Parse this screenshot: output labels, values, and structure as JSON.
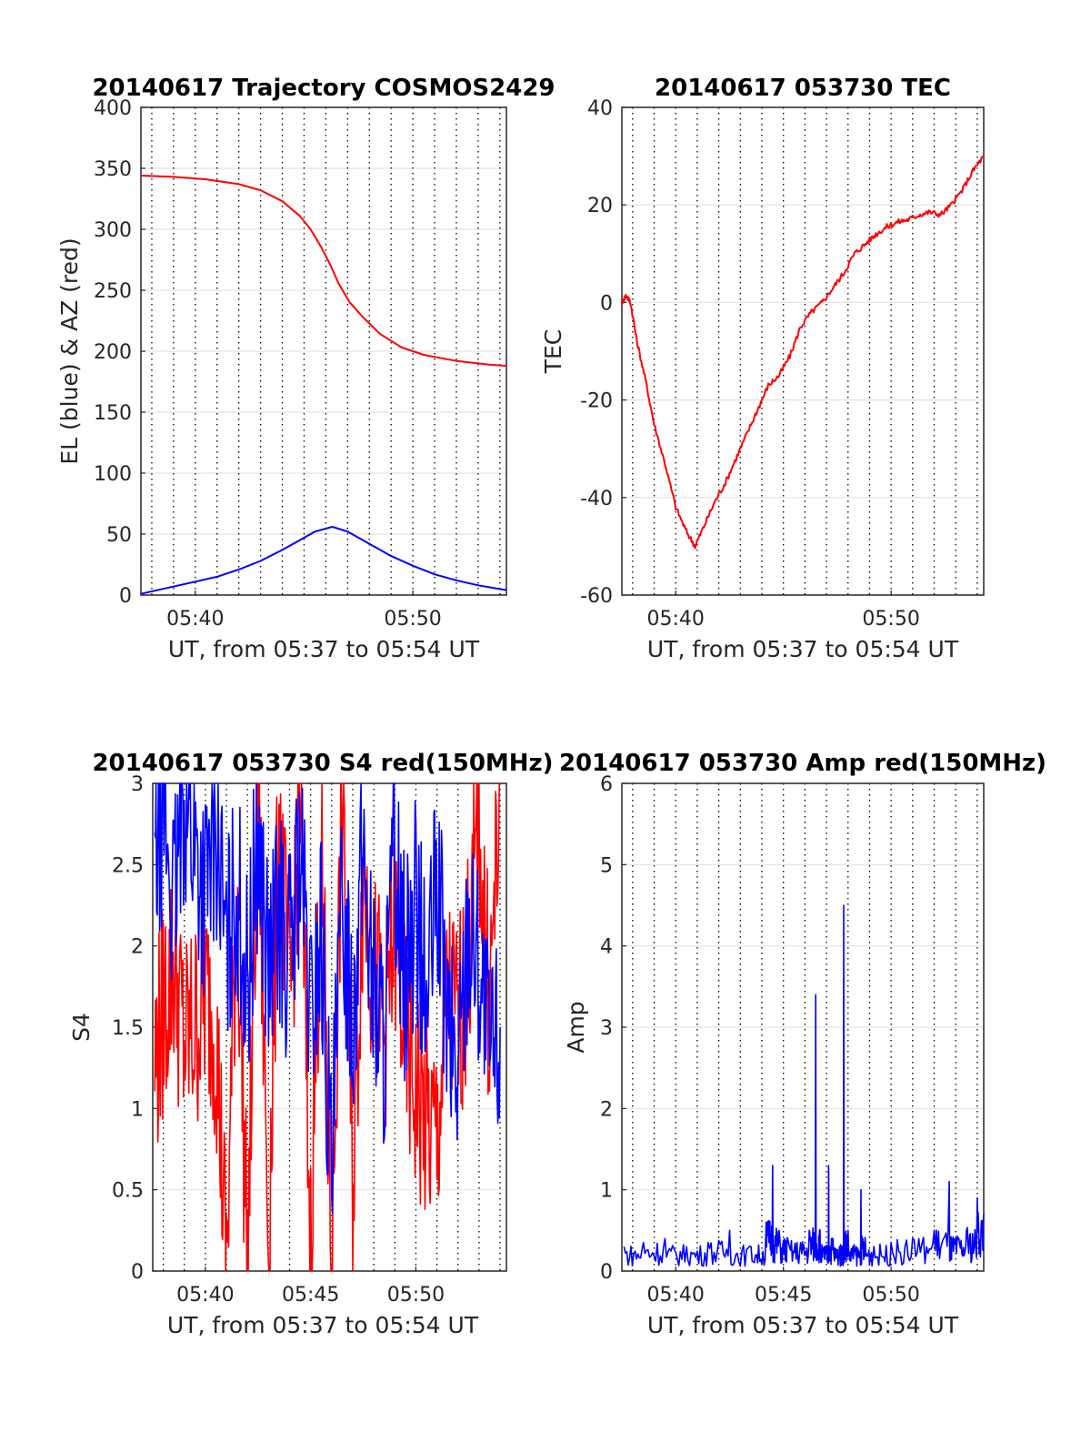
{
  "colors": {
    "az": "#ff0000",
    "el": "#0000ff",
    "tec": "#ff0000",
    "s4_red": "#ff0000",
    "s4_blue": "#0000ff",
    "amp": "#0000ff",
    "grid": "#e3e3e3",
    "axis": "#262626"
  },
  "chart_data": [
    {
      "id": "trajectory",
      "type": "line",
      "title": "20140617 Trajectory COSMOS2429",
      "xlabel": "UT, from 05:37 to 05:54 UT",
      "ylabel": "EL (blue) & AZ (red)",
      "xlim": [
        37.5,
        54.3
      ],
      "ylim": [
        0,
        400
      ],
      "xticks": [
        40,
        50
      ],
      "xticklabels": [
        "05:40",
        "05:50"
      ],
      "yticks": [
        0,
        50,
        100,
        150,
        200,
        250,
        300,
        350,
        400
      ],
      "yticklabels": [
        "0",
        "50",
        "100",
        "150",
        "200",
        "250",
        "300",
        "350",
        "400"
      ],
      "minor_x_grid": true,
      "grid": true,
      "series": [
        {
          "color": "red",
          "x": [
            37.5,
            39,
            40.5,
            42,
            43,
            44,
            44.8,
            45.3,
            45.8,
            46.2,
            46.6,
            47.1,
            47.7,
            48.5,
            49.5,
            50.5,
            52,
            53.5,
            54.3
          ],
          "values": [
            344,
            343,
            341,
            337,
            332,
            323,
            311,
            300,
            285,
            271,
            255,
            240,
            228,
            214,
            203,
            197,
            192,
            189,
            188
          ]
        },
        {
          "color": "blue",
          "x": [
            37.5,
            38.5,
            40,
            41,
            42,
            43,
            44,
            44.8,
            45.5,
            46.3,
            47,
            48,
            49,
            50,
            51,
            52,
            53,
            54.3
          ],
          "values": [
            1,
            5,
            11,
            15,
            21,
            28,
            37,
            45,
            52,
            56,
            52,
            42,
            32,
            24,
            17,
            12,
            8,
            4
          ]
        }
      ]
    },
    {
      "id": "tec",
      "type": "line",
      "title": "20140617 053730 TEC",
      "xlabel": "UT, from 05:37 to 05:54 UT",
      "ylabel": "TEC",
      "xlim": [
        37.5,
        54.3
      ],
      "ylim": [
        -60,
        40
      ],
      "xticks": [
        40,
        50
      ],
      "xticklabels": [
        "05:40",
        "05:50"
      ],
      "yticks": [
        -60,
        -40,
        -20,
        0,
        20,
        40
      ],
      "yticklabels": [
        "-60",
        "-40",
        "-20",
        "0",
        "20",
        "40"
      ],
      "minor_x_grid": true,
      "grid": true,
      "series": [
        {
          "color": "red",
          "x": [
            37.5,
            37.7,
            37.9,
            38.2,
            38.6,
            39,
            39.5,
            40,
            40.5,
            40.9,
            41.3,
            41.8,
            42.3,
            42.8,
            43.3,
            43.8,
            44.3,
            44.8,
            45.3,
            45.8,
            46.3,
            46.8,
            47.3,
            47.8,
            48.3,
            48.8,
            49.3,
            49.8,
            50.3,
            50.8,
            51.3,
            51.8,
            52.3,
            52.8,
            53.3,
            53.8,
            54.3
          ],
          "values": [
            0,
            1.5,
            0,
            -8,
            -16,
            -25,
            -33,
            -42,
            -47,
            -50,
            -46,
            -41,
            -37,
            -32,
            -27,
            -22,
            -17,
            -15,
            -11,
            -5,
            -2,
            0,
            3,
            6,
            10,
            12,
            14,
            15.5,
            16.5,
            17,
            18,
            18.5,
            18,
            20,
            23,
            27,
            30
          ]
        }
      ]
    },
    {
      "id": "s4",
      "type": "line",
      "title": "20140617 053730 S4 red(150MHz)",
      "xlabel": "UT, from 05:37 to 05:54 UT",
      "ylabel": "S4",
      "xlim": [
        37.5,
        54.3
      ],
      "ylim": [
        0,
        3
      ],
      "xticks": [
        40,
        45,
        50
      ],
      "xticklabels": [
        "05:40",
        "05:45",
        "05:50"
      ],
      "yticks": [
        0,
        0.5,
        1,
        1.5,
        2,
        2.5,
        3
      ],
      "yticklabels": [
        "0",
        "0.5",
        "1",
        "1.5",
        "2",
        "2.5",
        "3"
      ],
      "minor_x_grid": true,
      "grid": true,
      "series": [
        {
          "color": "red",
          "x": [
            37.6,
            38,
            38.5,
            39,
            39.5,
            40,
            40.5,
            41,
            41.5,
            42,
            42.5,
            43,
            43.5,
            44,
            44.5,
            45,
            45.5,
            46,
            46.5,
            47,
            47.5,
            48,
            48.5,
            49,
            49.5,
            50,
            50.5,
            51,
            51.5,
            52,
            52.5,
            53,
            53.5,
            54
          ],
          "values": [
            1.3,
            1.6,
            1.9,
            1.4,
            1.5,
            1.7,
            1.5,
            0,
            2.4,
            0,
            3,
            0.2,
            2.8,
            1.6,
            3,
            0.1,
            2.6,
            0,
            3,
            0.5,
            2.5,
            1.8,
            1.5,
            2.1,
            1.4,
            1.1,
            0.9,
            0.8,
            1.7,
            1.5,
            1.9,
            2.8,
            1.6,
            3
          ]
        },
        {
          "color": "blue",
          "x": [
            37.6,
            38,
            38.5,
            39,
            39.5,
            40,
            40.5,
            41,
            41.5,
            42,
            42.5,
            43,
            43.5,
            44,
            44.5,
            45,
            45.5,
            46,
            46.5,
            47,
            47.5,
            48,
            48.5,
            49,
            49.5,
            50,
            50.5,
            51,
            51.5,
            52,
            52.5,
            53,
            53.5,
            54
          ],
          "values": [
            2.5,
            2.9,
            2.2,
            3,
            2.6,
            2.3,
            2.8,
            1.9,
            2.4,
            1.7,
            2.7,
            1.8,
            2.2,
            1.9,
            2.6,
            1.5,
            2.1,
            0.5,
            2.3,
            1.6,
            2.6,
            1.7,
            1.4,
            2.6,
            1.8,
            2.3,
            1.6,
            2.4,
            1.5,
            1.2,
            2.2,
            1.9,
            1.3,
            1.5
          ]
        }
      ]
    },
    {
      "id": "amp",
      "type": "line",
      "title": "20140617 053730 Amp red(150MHz)",
      "xlabel": "UT, from 05:37 to 05:54 UT",
      "ylabel": "Amp",
      "xlim": [
        37.5,
        54.3
      ],
      "ylim": [
        0,
        6
      ],
      "xticks": [
        40,
        45,
        50
      ],
      "xticklabels": [
        "05:40",
        "05:45",
        "05:50"
      ],
      "yticks": [
        0,
        1,
        2,
        3,
        4,
        5,
        6
      ],
      "yticklabels": [
        "0",
        "1",
        "2",
        "3",
        "4",
        "5",
        "6"
      ],
      "minor_x_grid": true,
      "grid": true,
      "series": [
        {
          "color": "blue",
          "x": [
            37.6,
            38.5,
            39.5,
            40.5,
            41.5,
            42.5,
            43.5,
            44.2,
            44.5,
            44.8,
            45.2,
            45.8,
            46.2,
            46.5,
            46.7,
            46.9,
            47.1,
            47.3,
            47.6,
            47.8,
            48,
            48.3,
            48.6,
            48.8,
            49.2,
            50,
            51,
            52,
            52.7,
            53,
            53.5,
            54,
            54.3
          ],
          "values": [
            0.3,
            0.35,
            0.4,
            0.3,
            0.35,
            0.5,
            0.3,
            0.6,
            1.3,
            0.5,
            0.4,
            0.35,
            0.5,
            3.4,
            0.5,
            0.3,
            1.3,
            0.4,
            0.3,
            4.5,
            0.5,
            0.3,
            1.0,
            0.4,
            0.3,
            0.35,
            0.4,
            0.5,
            1.1,
            0.4,
            0.5,
            0.9,
            0.7
          ]
        }
      ]
    }
  ]
}
